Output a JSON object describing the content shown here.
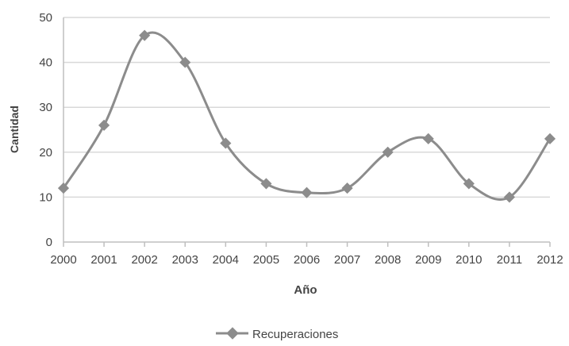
{
  "chart_data": {
    "type": "line",
    "title": "",
    "xlabel": "Año",
    "ylabel": "Cantidad",
    "categories": [
      "2000",
      "2001",
      "2002",
      "2003",
      "2004",
      "2005",
      "2006",
      "2007",
      "2008",
      "2009",
      "2010",
      "2011",
      "2012"
    ],
    "series": [
      {
        "name": "Recuperaciones",
        "values": [
          12,
          26,
          46,
          40,
          22,
          13,
          11,
          12,
          20,
          23,
          13,
          10,
          23
        ]
      }
    ],
    "yticks": [
      "0",
      "10",
      "20",
      "30",
      "40",
      "50"
    ],
    "ylim": [
      0,
      50
    ],
    "grid": "horizontal",
    "smooth": true,
    "legend_position": "bottom",
    "colors": {
      "series": "#8c8c8c",
      "grid": "#d9d9d9",
      "axis_text": "#444444"
    }
  }
}
